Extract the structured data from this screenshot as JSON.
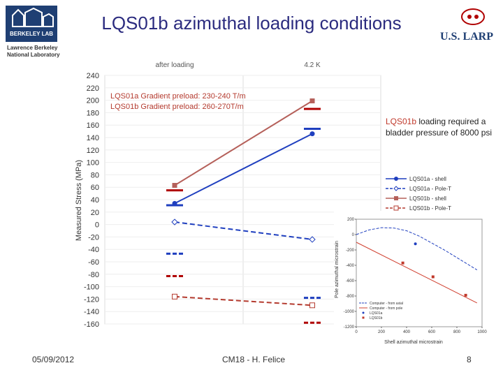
{
  "slide": {
    "title": "LQS01b azimuthal loading conditions",
    "logo_left_text": "BERKELEY LAB",
    "logo_subtitle": "Lawrence Berkeley National Laboratory",
    "logo_right_text": "U.S. LARP",
    "date": "05/09/2012",
    "footer_center": "CM18 - H. Felice",
    "page_number": "8"
  },
  "annotations": {
    "preload_a": "LQS01a Gradient preload: 230-240 T/m",
    "preload_b": "LQS01b Gradient preload: 260-270T/m",
    "note_prefix": "LQS01b",
    "note_rest": " loading required a bladder pressure of 8000 psi"
  },
  "colors": {
    "blue": "#1f3fbf",
    "red": "#b43a2e",
    "brown": "#b5605a",
    "dark_red": "#b00000",
    "grid": "#dddddd",
    "title": "#2b2b7f"
  },
  "chart_data": [
    {
      "type": "line",
      "title": "",
      "xlabel": "",
      "ylabel": "Measured Stress (MPa)",
      "ylim": [
        -160,
        240
      ],
      "yticks": [
        240,
        220,
        200,
        180,
        160,
        140,
        120,
        100,
        80,
        60,
        40,
        20,
        0,
        -20,
        -40,
        -60,
        -80,
        -100,
        -120,
        -140,
        -160
      ],
      "categories": [
        "after loading",
        "4.2 K"
      ],
      "legend_placement": "right",
      "series": [
        {
          "name": "LQS01a - shell",
          "color": "#1f3fbf",
          "style": "solid",
          "marker": "circle",
          "values": [
            34,
            146
          ]
        },
        {
          "name": "LQS01a - Pole-T",
          "color": "#1f3fbf",
          "style": "dashed",
          "marker": "diamond-open",
          "values": [
            4,
            -24
          ]
        },
        {
          "name": "LQS01b - shell",
          "color": "#b5605a",
          "style": "solid",
          "marker": "square",
          "values": [
            63,
            199
          ]
        },
        {
          "name": "LQS01b - Pole-T",
          "color": "#b43a2e",
          "style": "dashed",
          "marker": "square-open",
          "values": [
            -116,
            -130
          ]
        }
      ],
      "target_marks": [
        {
          "x": 0,
          "y": 31,
          "color": "#1f3fbf",
          "style": "solid"
        },
        {
          "x": 0,
          "y": 55,
          "color": "#b00000",
          "style": "solid"
        },
        {
          "x": 0,
          "y": -47,
          "color": "#1f3fbf",
          "style": "dashed"
        },
        {
          "x": 0,
          "y": -83,
          "color": "#b00000",
          "style": "dashed"
        },
        {
          "x": 1,
          "y": 154,
          "color": "#1f3fbf",
          "style": "solid"
        },
        {
          "x": 1,
          "y": 186,
          "color": "#b00000",
          "style": "solid"
        },
        {
          "x": 1,
          "y": -118,
          "color": "#1f3fbf",
          "style": "dashed"
        },
        {
          "x": 1,
          "y": -158,
          "color": "#b00000",
          "style": "dashed"
        }
      ]
    },
    {
      "type": "scatter",
      "title": "",
      "xlabel": "Shell azimuthal microstrain",
      "ylabel": "Pole azimuthal microstrain",
      "xlim": [
        0,
        1000
      ],
      "ylim": [
        -1200,
        200
      ],
      "xticks": [
        0,
        200,
        400,
        600,
        800,
        1000
      ],
      "xtick_labels": [
        "0",
        "200",
        "400",
        "600",
        "800",
        "1000"
      ],
      "yticks": [
        200,
        0,
        -200,
        -400,
        -600,
        -800,
        -1000,
        -1200
      ],
      "ytick_labels": [
        "200",
        "0",
        "-200",
        "-400",
        "-600",
        "-800",
        "-1000",
        "-1200"
      ],
      "legend_placement": "bottom-left",
      "series": [
        {
          "name": "Computer - from axial",
          "color": "#1f3fbf",
          "style": "dashed",
          "points": [
            [
              0,
              0
            ],
            [
              100,
              60
            ],
            [
              200,
              90
            ],
            [
              300,
              85
            ],
            [
              400,
              50
            ],
            [
              500,
              -20
            ],
            [
              600,
              -110
            ],
            [
              700,
              -200
            ],
            [
              800,
              -300
            ],
            [
              900,
              -400
            ],
            [
              960,
              -460
            ]
          ]
        },
        {
          "name": "Computer - from pole",
          "color": "#d04030",
          "style": "solid",
          "points": [
            [
              0,
              -100
            ],
            [
              960,
              -890
            ]
          ]
        },
        {
          "name": "LQS01a",
          "color": "#1f3fbf",
          "style": "point",
          "points": [
            [
              470,
              -120
            ]
          ]
        },
        {
          "name": "LQS01b",
          "color": "#c0392b",
          "style": "point",
          "points": [
            [
              370,
              -370
            ],
            [
              610,
              -550
            ],
            [
              870,
              -790
            ]
          ]
        }
      ]
    }
  ]
}
